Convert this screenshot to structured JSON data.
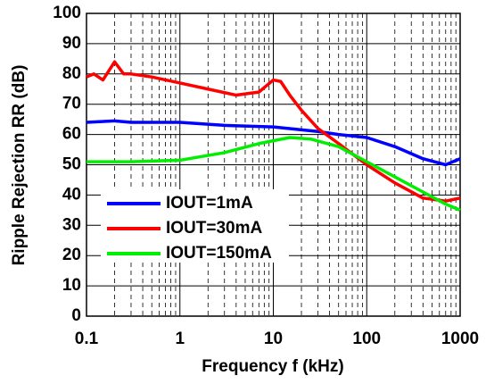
{
  "chart_data": {
    "type": "line",
    "x_label": "Frequency f (kHz)",
    "y_label": "Ripple Rejection RR (dB)",
    "xlim": [
      0.1,
      1000
    ],
    "ylim": [
      0,
      100
    ],
    "log_x": true,
    "grid": true,
    "minor_grid": true,
    "xticks": [
      0.1,
      1,
      10,
      100,
      1000
    ],
    "yticks": [
      0,
      10,
      20,
      30,
      40,
      50,
      60,
      70,
      80,
      90,
      100
    ],
    "legend": "lower-left",
    "series": [
      {
        "name": "IOUT=1mA",
        "color": "#0000ff",
        "x": [
          0.1,
          0.2,
          0.3,
          1,
          3,
          10,
          30,
          50,
          100,
          200,
          400,
          700,
          1000
        ],
        "values": [
          64,
          64.5,
          64,
          64,
          63,
          62.5,
          61,
          60,
          59,
          56,
          52,
          50,
          52
        ]
      },
      {
        "name": "IOUT=30mA",
        "color": "#ff0000",
        "x": [
          0.1,
          0.12,
          0.15,
          0.2,
          0.25,
          0.3,
          0.5,
          1,
          2,
          4,
          7,
          10,
          12,
          15,
          20,
          30,
          50,
          100,
          200,
          400,
          700,
          1000
        ],
        "values": [
          79,
          80,
          78,
          84,
          80,
          80,
          79,
          77,
          75,
          73,
          74,
          78,
          77.5,
          73,
          68,
          62,
          57,
          50,
          44,
          39,
          38,
          39
        ]
      },
      {
        "name": "IOUT=150mA",
        "color": "#00ee00",
        "x": [
          0.1,
          0.3,
          1,
          3,
          7,
          15,
          25,
          50,
          100,
          200,
          400,
          700,
          1000
        ],
        "values": [
          51,
          51,
          51.5,
          54,
          57,
          59,
          58.5,
          56,
          51,
          46,
          41,
          37,
          35
        ]
      }
    ]
  }
}
